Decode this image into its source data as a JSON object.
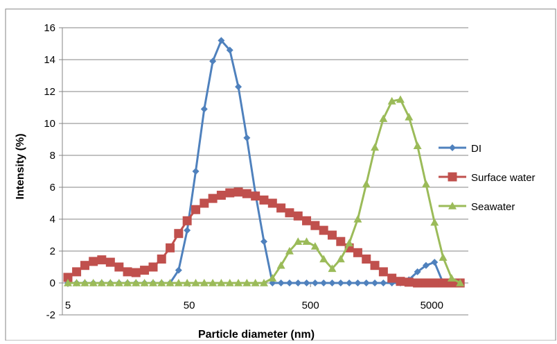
{
  "chart_data": {
    "type": "line",
    "title": "",
    "xlabel": "Particle diameter (nm)",
    "ylabel": "Intensity (%)",
    "x_scale": "log",
    "xlim": [
      4.5,
      10000
    ],
    "ylim": [
      -2,
      16
    ],
    "x_ticks": [
      5,
      50,
      500,
      5000
    ],
    "y_ticks": [
      -2,
      0,
      2,
      4,
      6,
      8,
      10,
      12,
      14,
      16
    ],
    "grid": "horizontal",
    "legend_position": "right",
    "series": [
      {
        "name": "DI",
        "color": "#4f81bd",
        "marker": "diamond",
        "x": [
          5,
          5.9,
          6.9,
          8.1,
          9.5,
          11.2,
          13.2,
          15.5,
          18.2,
          21.4,
          25.2,
          29.6,
          34.8,
          40.9,
          48.1,
          56.6,
          66.5,
          78.2,
          91.9,
          108.1,
          127.1,
          149.4,
          175.7,
          206.6,
          242.9,
          285.6,
          335.8,
          394.8,
          464.2,
          545.8,
          641.7,
          754.5,
          887.2,
          1043.1,
          1226.5,
          1442,
          1695.5,
          1993.5,
          2343.9,
          2755.9,
          3240.3,
          3809.9,
          4479.6,
          5267,
          6192.7
        ],
        "y": [
          0,
          0,
          0,
          0,
          0,
          0,
          0,
          0,
          0,
          0,
          0,
          0,
          0,
          0.8,
          3.3,
          7.0,
          10.9,
          13.9,
          15.2,
          14.6,
          12.3,
          9.1,
          5.6,
          2.6,
          0,
          0,
          0,
          0,
          0,
          0,
          0,
          0,
          0,
          0,
          0,
          0,
          0,
          0,
          0,
          0,
          0.2,
          0.7,
          1.1,
          1.3,
          0
        ]
      },
      {
        "name": "Surface water",
        "color": "#c0504d",
        "marker": "square",
        "x": [
          5,
          5.9,
          6.9,
          8.1,
          9.5,
          11.2,
          13.2,
          15.5,
          18.2,
          21.4,
          25.2,
          29.6,
          34.8,
          40.9,
          48.1,
          56.6,
          66.5,
          78.2,
          91.9,
          108.1,
          127.1,
          149.4,
          175.7,
          206.6,
          242.9,
          285.6,
          335.8,
          394.8,
          464.2,
          545.8,
          641.7,
          754.5,
          887.2,
          1043.1,
          1226.5,
          1442,
          1695.5,
          1993.5,
          2343.9,
          2755.9,
          3240.3,
          3809.9,
          4479.6,
          5267,
          6192.7,
          7281.1,
          8560.4
        ],
        "y": [
          0.35,
          0.7,
          1.1,
          1.35,
          1.45,
          1.3,
          1.0,
          0.7,
          0.65,
          0.8,
          1.0,
          1.5,
          2.2,
          3.1,
          3.9,
          4.6,
          5.0,
          5.3,
          5.5,
          5.65,
          5.7,
          5.6,
          5.45,
          5.2,
          5.0,
          4.7,
          4.4,
          4.2,
          3.9,
          3.6,
          3.3,
          3.0,
          2.6,
          2.2,
          1.9,
          1.5,
          1.1,
          0.7,
          0.3,
          0.1,
          0.05,
          0,
          0,
          0,
          0,
          0,
          0
        ]
      },
      {
        "name": "Seawater",
        "color": "#9bbb59",
        "marker": "triangle",
        "x": [
          5,
          5.9,
          6.9,
          8.1,
          9.5,
          11.2,
          13.2,
          15.5,
          18.2,
          21.4,
          25.2,
          29.6,
          34.8,
          40.9,
          48.1,
          56.6,
          66.5,
          78.2,
          91.9,
          108.1,
          127.1,
          149.4,
          175.7,
          206.6,
          242.9,
          285.6,
          335.8,
          394.8,
          464.2,
          545.8,
          641.7,
          754.5,
          887.2,
          1043.1,
          1226.5,
          1442,
          1695.5,
          1993.5,
          2343.9,
          2755.9,
          3240.3,
          3809.9,
          4479.6,
          5267,
          6192.7,
          7281.1,
          8560.4
        ],
        "y": [
          0,
          0,
          0,
          0,
          0,
          0,
          0,
          0,
          0,
          0,
          0,
          0,
          0,
          0,
          0,
          0,
          0,
          0,
          0,
          0,
          0,
          0,
          0,
          0,
          0.3,
          1.1,
          2.0,
          2.6,
          2.6,
          2.3,
          1.5,
          0.9,
          1.5,
          2.5,
          4.0,
          6.2,
          8.5,
          10.3,
          11.4,
          11.5,
          10.4,
          8.6,
          6.2,
          3.8,
          1.6,
          0.3,
          0
        ]
      }
    ]
  }
}
